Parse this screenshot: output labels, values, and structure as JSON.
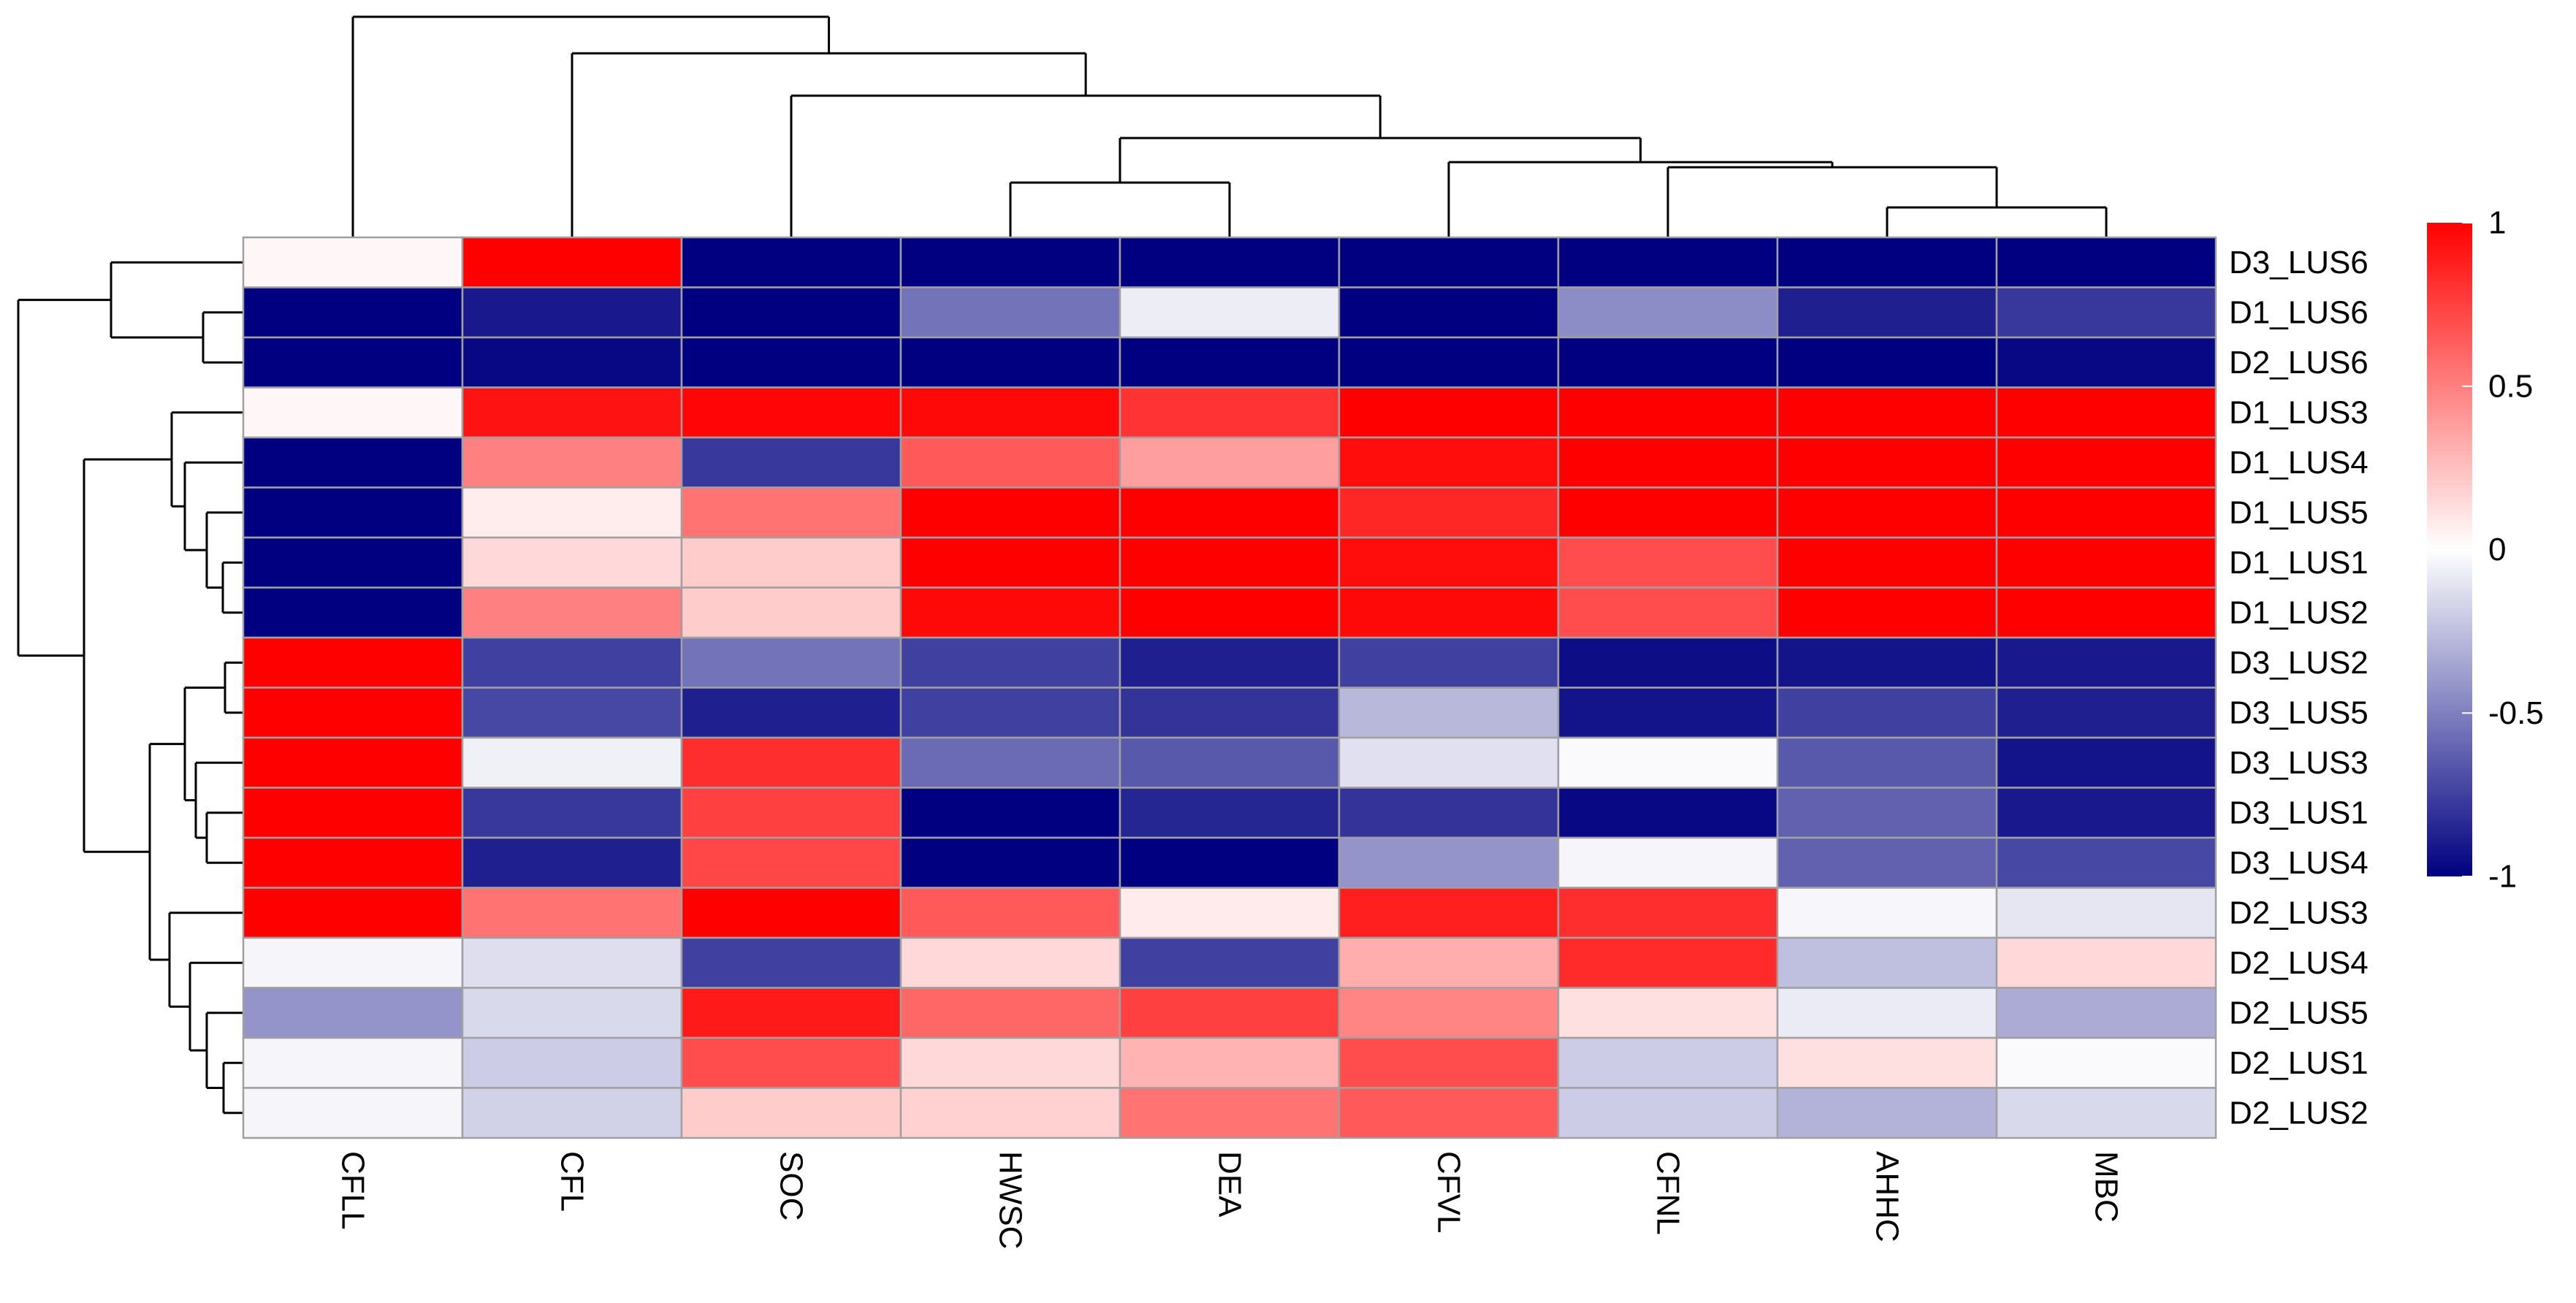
{
  "chart_data": {
    "type": "heatmap",
    "columns": [
      "CFLL",
      "CFL",
      "SOC",
      "HWSC",
      "DEA",
      "CFVL",
      "CFNL",
      "AHHC",
      "MBC"
    ],
    "rows": [
      "D3_LUS6",
      "D1_LUS6",
      "D2_LUS6",
      "D1_LUS3",
      "D1_LUS4",
      "D1_LUS5",
      "D1_LUS1",
      "D1_LUS2",
      "D3_LUS2",
      "D3_LUS5",
      "D3_LUS3",
      "D3_LUS1",
      "D3_LUS4",
      "D2_LUS3",
      "D2_LUS4",
      "D2_LUS5",
      "D2_LUS1",
      "D2_LUS2"
    ],
    "values": [
      [
        0.03,
        1.0,
        -1.0,
        -1.0,
        -1.0,
        -1.0,
        -1.0,
        -1.0,
        -1.0
      ],
      [
        -1.0,
        -0.9,
        -1.0,
        -0.55,
        -0.07,
        -1.0,
        -0.45,
        -0.88,
        -0.78
      ],
      [
        -1.0,
        -0.97,
        -1.0,
        -1.0,
        -1.0,
        -1.0,
        -1.0,
        -1.0,
        -0.97
      ],
      [
        0.03,
        0.93,
        0.98,
        0.97,
        0.8,
        1.0,
        1.0,
        1.0,
        1.0
      ],
      [
        -1.0,
        0.5,
        -0.78,
        0.65,
        0.38,
        0.95,
        1.0,
        1.0,
        1.0
      ],
      [
        -1.0,
        0.07,
        0.55,
        1.0,
        1.0,
        0.85,
        1.0,
        1.0,
        1.0
      ],
      [
        -1.0,
        0.15,
        0.2,
        1.0,
        1.0,
        0.95,
        0.7,
        1.0,
        1.0
      ],
      [
        -1.0,
        0.5,
        0.2,
        0.97,
        1.0,
        0.97,
        0.7,
        1.0,
        1.0
      ],
      [
        1.0,
        -0.75,
        -0.55,
        -0.75,
        -0.88,
        -0.75,
        -0.95,
        -0.92,
        -0.9
      ],
      [
        1.0,
        -0.72,
        -0.88,
        -0.75,
        -0.8,
        -0.28,
        -0.92,
        -0.75,
        -0.88
      ],
      [
        1.0,
        -0.06,
        0.82,
        -0.58,
        -0.65,
        -0.12,
        -0.02,
        -0.65,
        -0.92
      ],
      [
        1.0,
        -0.78,
        0.75,
        -1.0,
        -0.85,
        -0.8,
        -0.97,
        -0.62,
        -0.9
      ],
      [
        1.0,
        -0.88,
        0.72,
        -1.0,
        -1.0,
        -0.42,
        -0.04,
        -0.62,
        -0.72
      ],
      [
        1.0,
        0.55,
        1.0,
        0.65,
        0.08,
        0.88,
        0.82,
        -0.03,
        -0.1
      ],
      [
        -0.04,
        -0.13,
        -0.75,
        0.15,
        -0.75,
        0.32,
        0.83,
        -0.25,
        0.15
      ],
      [
        -0.42,
        -0.15,
        0.9,
        0.6,
        0.75,
        0.48,
        0.12,
        -0.08,
        -0.33
      ],
      [
        -0.04,
        -0.2,
        0.7,
        0.15,
        0.3,
        0.7,
        -0.2,
        0.12,
        -0.02
      ],
      [
        -0.04,
        -0.18,
        0.2,
        0.18,
        0.55,
        0.65,
        -0.2,
        -0.3,
        -0.15
      ]
    ],
    "color_scale": {
      "min": -1,
      "mid": 0,
      "max": 1,
      "low_color": "#000080",
      "mid_color": "#FFFFFF",
      "high_color": "#FF0000"
    },
    "legend": {
      "position": "right",
      "ticks": [
        "1",
        "0.5",
        "0",
        "-0.5",
        "-1"
      ]
    },
    "cell_border_color": "#A0A0A0",
    "dendrogram_color": "#000000",
    "title": "",
    "xlabel": "",
    "ylabel": ""
  }
}
